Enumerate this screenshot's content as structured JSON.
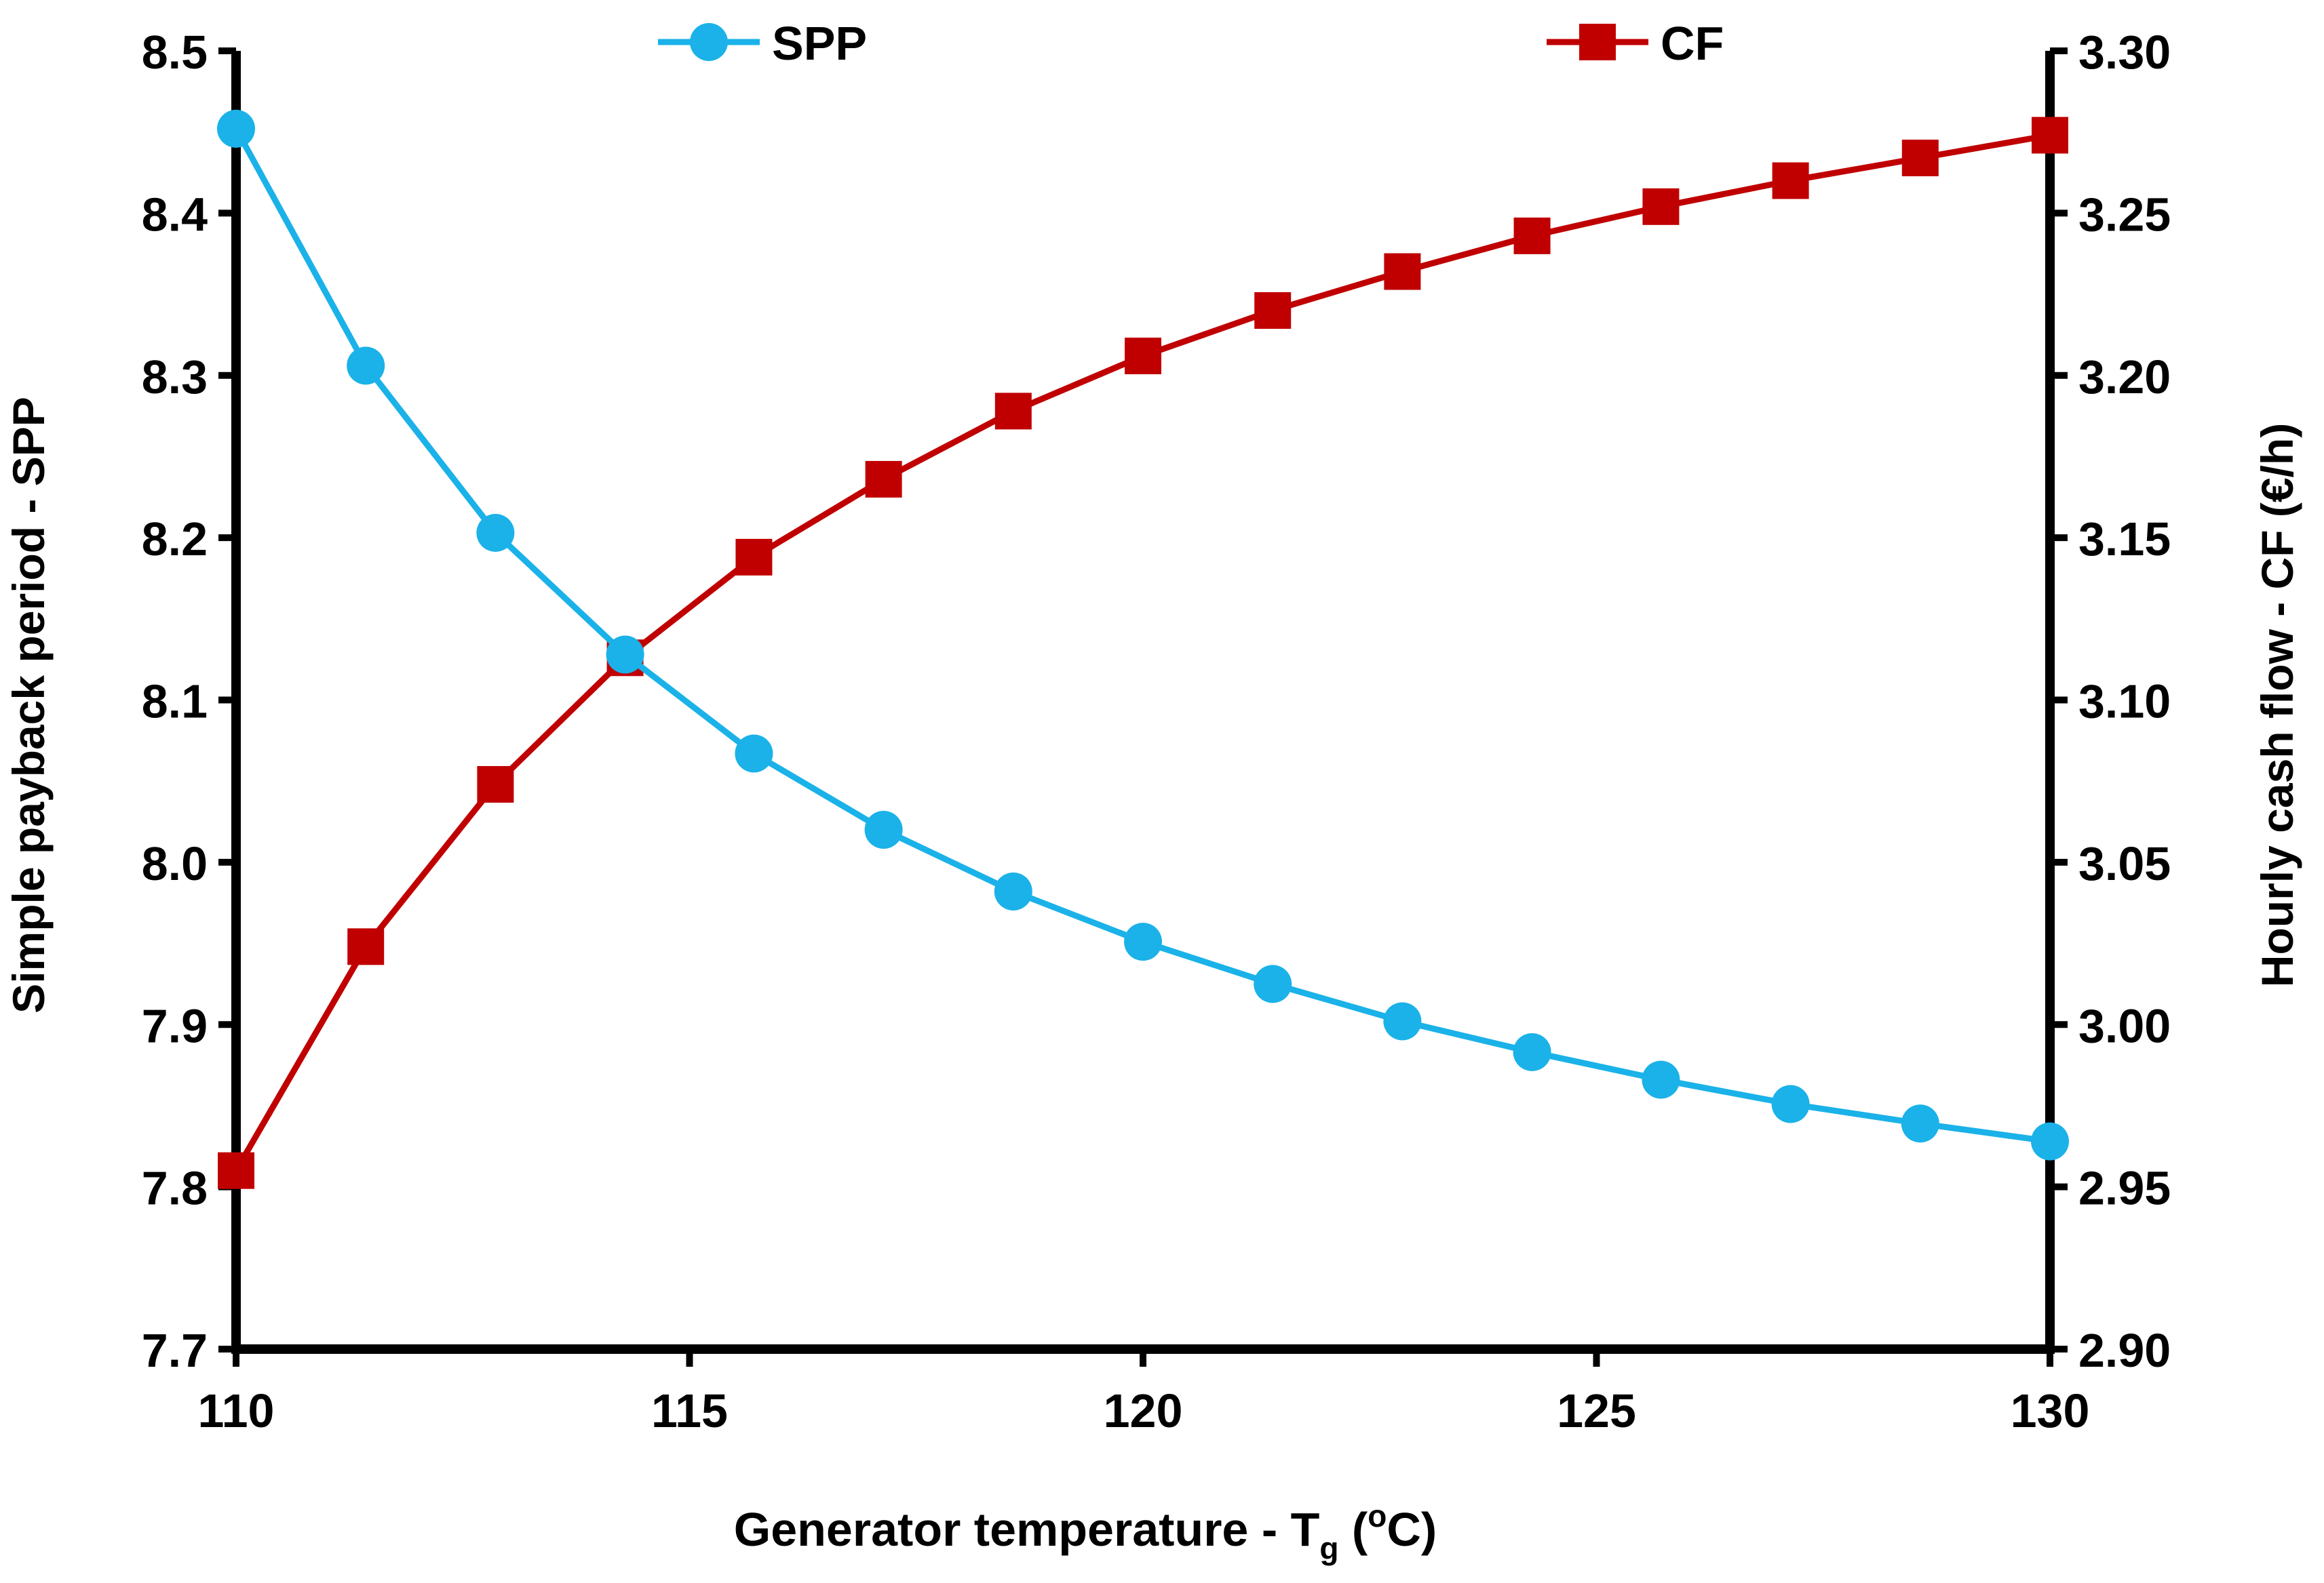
{
  "chart_data": {
    "type": "line",
    "x": [
      110,
      111.43,
      112.86,
      114.29,
      115.71,
      117.14,
      118.57,
      120,
      121.43,
      122.86,
      124.29,
      125.71,
      127.14,
      128.57,
      130
    ],
    "xlim": [
      110,
      130
    ],
    "xticks": [
      "110",
      "115",
      "120",
      "125",
      "130"
    ],
    "xlabel": {
      "main": "Generator temperature - T",
      "sub": "g",
      "pre_sup": " (",
      "sup": "o",
      "post": "C)"
    },
    "ylabel_left": "Simple payback period - SPP",
    "ylabel_right": "Hourly cash flow - CF (€/h)",
    "ylim_left": [
      7.7,
      8.5
    ],
    "ylim_right": [
      2.9,
      3.3
    ],
    "yticks_left": [
      "7.7",
      "7.8",
      "7.9",
      "8.0",
      "8.1",
      "8.2",
      "8.3",
      "8.4",
      "8.5"
    ],
    "yticks_right": [
      "2.90",
      "2.95",
      "3.00",
      "3.05",
      "3.10",
      "3.15",
      "3.20",
      "3.25",
      "3.30"
    ],
    "grid": false,
    "legend_position": "top",
    "series": [
      {
        "name": "SPP",
        "axis": "left",
        "marker": "circle",
        "color": "#1AB2E8",
        "values": [
          8.452,
          8.306,
          8.203,
          8.128,
          8.067,
          8.02,
          7.982,
          7.951,
          7.925,
          7.902,
          7.883,
          7.866,
          7.851,
          7.839,
          7.828
        ]
      },
      {
        "name": "CF",
        "axis": "right",
        "marker": "square",
        "color": "#C00000",
        "values": [
          2.955,
          3.024,
          3.074,
          3.113,
          3.144,
          3.168,
          3.189,
          3.206,
          3.22,
          3.232,
          3.243,
          3.252,
          3.26,
          3.267,
          3.274
        ]
      }
    ]
  }
}
